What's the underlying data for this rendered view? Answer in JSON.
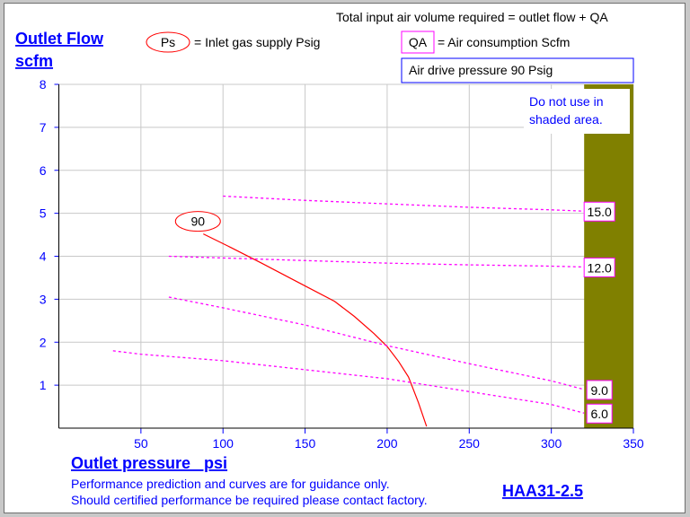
{
  "chart_data": {
    "type": "line",
    "model": "HAA31-2.5",
    "ylabel_line1": "Outlet Flow",
    "ylabel_line2": "scfm",
    "xlabel": "Outlet pressure   psi",
    "xlim": [
      0,
      350
    ],
    "ylim": [
      0,
      8
    ],
    "x_ticks": [
      50,
      100,
      150,
      200,
      250,
      300,
      350
    ],
    "y_ticks": [
      1,
      2,
      3,
      4,
      5,
      6,
      7,
      8
    ],
    "grid": true,
    "shaded_region": {
      "x_from": 320,
      "x_to": 350,
      "color": "#808000",
      "note_line1": "Do not use in",
      "note_line2": "shaded area."
    },
    "header_note": "Total input air volume required = outlet flow + QA",
    "legend_ps_symbol": "Ps",
    "legend_ps_text": "= Inlet gas supply  Psig",
    "legend_qa_symbol": "QA",
    "legend_qa_text": "= Air consumption  Scfm",
    "drive_pressure_label": "Air drive pressure  90 Psig",
    "footer_line1": "Performance prediction and curves are for guidance only.",
    "footer_line2": "Should certified performance be required please contact factory.",
    "series": [
      {
        "name": "90",
        "kind": "Ps",
        "color": "#ff0000",
        "points": [
          [
            88,
            4.52
          ],
          [
            105,
            4.2
          ],
          [
            123,
            3.85
          ],
          [
            150,
            3.31
          ],
          [
            168,
            2.95
          ],
          [
            180,
            2.6
          ],
          [
            192,
            2.2
          ],
          [
            200,
            1.9
          ],
          [
            207,
            1.55
          ],
          [
            213,
            1.19
          ],
          [
            219,
            0.6
          ],
          [
            224,
            0.04
          ]
        ]
      },
      {
        "name": "15.0",
        "kind": "QA",
        "color": "#ff00ff",
        "points": [
          [
            100,
            5.4
          ],
          [
            150,
            5.3
          ],
          [
            200,
            5.22
          ],
          [
            250,
            5.14
          ],
          [
            300,
            5.08
          ],
          [
            320,
            5.05
          ]
        ]
      },
      {
        "name": "12.0",
        "kind": "QA",
        "color": "#ff00ff",
        "points": [
          [
            67,
            4.0
          ],
          [
            100,
            3.96
          ],
          [
            150,
            3.9
          ],
          [
            200,
            3.84
          ],
          [
            250,
            3.8
          ],
          [
            300,
            3.77
          ],
          [
            320,
            3.75
          ]
        ]
      },
      {
        "name": "9.0",
        "kind": "QA",
        "color": "#ff00ff",
        "points": [
          [
            67,
            3.05
          ],
          [
            100,
            2.8
          ],
          [
            150,
            2.4
          ],
          [
            200,
            1.92
          ],
          [
            250,
            1.5
          ],
          [
            300,
            1.1
          ],
          [
            320,
            0.9
          ]
        ]
      },
      {
        "name": "6.0",
        "kind": "QA",
        "color": "#ff00ff",
        "points": [
          [
            33,
            1.8
          ],
          [
            50,
            1.72
          ],
          [
            100,
            1.57
          ],
          [
            150,
            1.36
          ],
          [
            200,
            1.15
          ],
          [
            250,
            0.85
          ],
          [
            300,
            0.55
          ],
          [
            320,
            0.35
          ]
        ]
      }
    ]
  }
}
